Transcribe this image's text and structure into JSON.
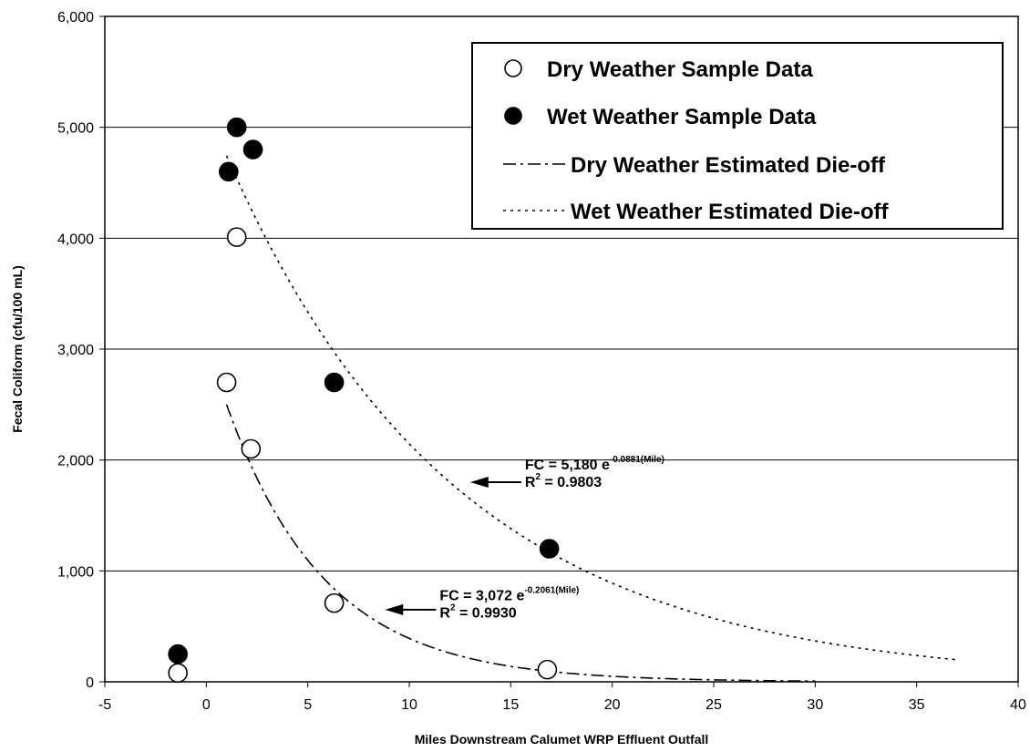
{
  "chart_data": {
    "type": "scatter",
    "title": "",
    "xlabel": "Miles Downstream Calumet WRP Effluent Outfall",
    "ylabel": "Fecal Coliform (cfu/100 mL)",
    "xlim": [
      -5,
      40
    ],
    "ylim": [
      0,
      6000
    ],
    "x_ticks": [
      -5,
      0,
      5,
      10,
      15,
      20,
      25,
      30,
      35,
      40
    ],
    "x_tick_labels": [
      "-5",
      "0",
      "5",
      "10",
      "15",
      "20",
      "25",
      "30",
      "35",
      "40"
    ],
    "y_ticks": [
      0,
      1000,
      2000,
      3000,
      4000,
      5000,
      6000
    ],
    "y_tick_labels": [
      "0",
      "1,000",
      "2,000",
      "3,000",
      "4,000",
      "5,000",
      "6,000"
    ],
    "grid": "horizontal",
    "legend_position": "top-right",
    "series": [
      {
        "name": "Dry Weather Sample Data",
        "kind": "points",
        "marker": "open-circle",
        "x": [
          -1.4,
          1.0,
          1.5,
          2.2,
          6.3,
          16.8
        ],
        "y": [
          80,
          2700,
          4010,
          2100,
          710,
          110
        ]
      },
      {
        "name": "Wet Weather Sample Data",
        "kind": "points",
        "marker": "filled-circle",
        "x": [
          -1.4,
          1.1,
          1.5,
          2.3,
          6.3,
          16.9
        ],
        "y": [
          250,
          4600,
          5000,
          4800,
          2700,
          1200
        ]
      },
      {
        "name": "Dry Weather Estimated Die-off",
        "kind": "curve",
        "style": "dash-dot",
        "coef": 3072,
        "rate": 0.2061,
        "x_range": [
          1,
          30
        ]
      },
      {
        "name": "Wet Weather Estimated Die-off",
        "kind": "curve",
        "style": "dotted",
        "coef": 5180,
        "rate": 0.0881,
        "x_range": [
          1,
          37
        ]
      }
    ],
    "annotations": [
      {
        "id": "wet",
        "prefix": "FC = 5,180 e",
        "exponent": "-0.0881(Mile)",
        "r2_label": "R",
        "r2_sup": "2",
        "r2_value": " = 0.9803",
        "arrow_to": [
          13,
          1800
        ],
        "text_at": [
          15.7,
          1950
        ]
      },
      {
        "id": "dry",
        "prefix": "FC = 3,072 e",
        "exponent": "-0.2061(Mile)",
        "r2_label": "R",
        "r2_sup": "2",
        "r2_value": " = 0.9930",
        "arrow_to": [
          8.8,
          650
        ],
        "text_at": [
          11.5,
          770
        ]
      }
    ]
  }
}
